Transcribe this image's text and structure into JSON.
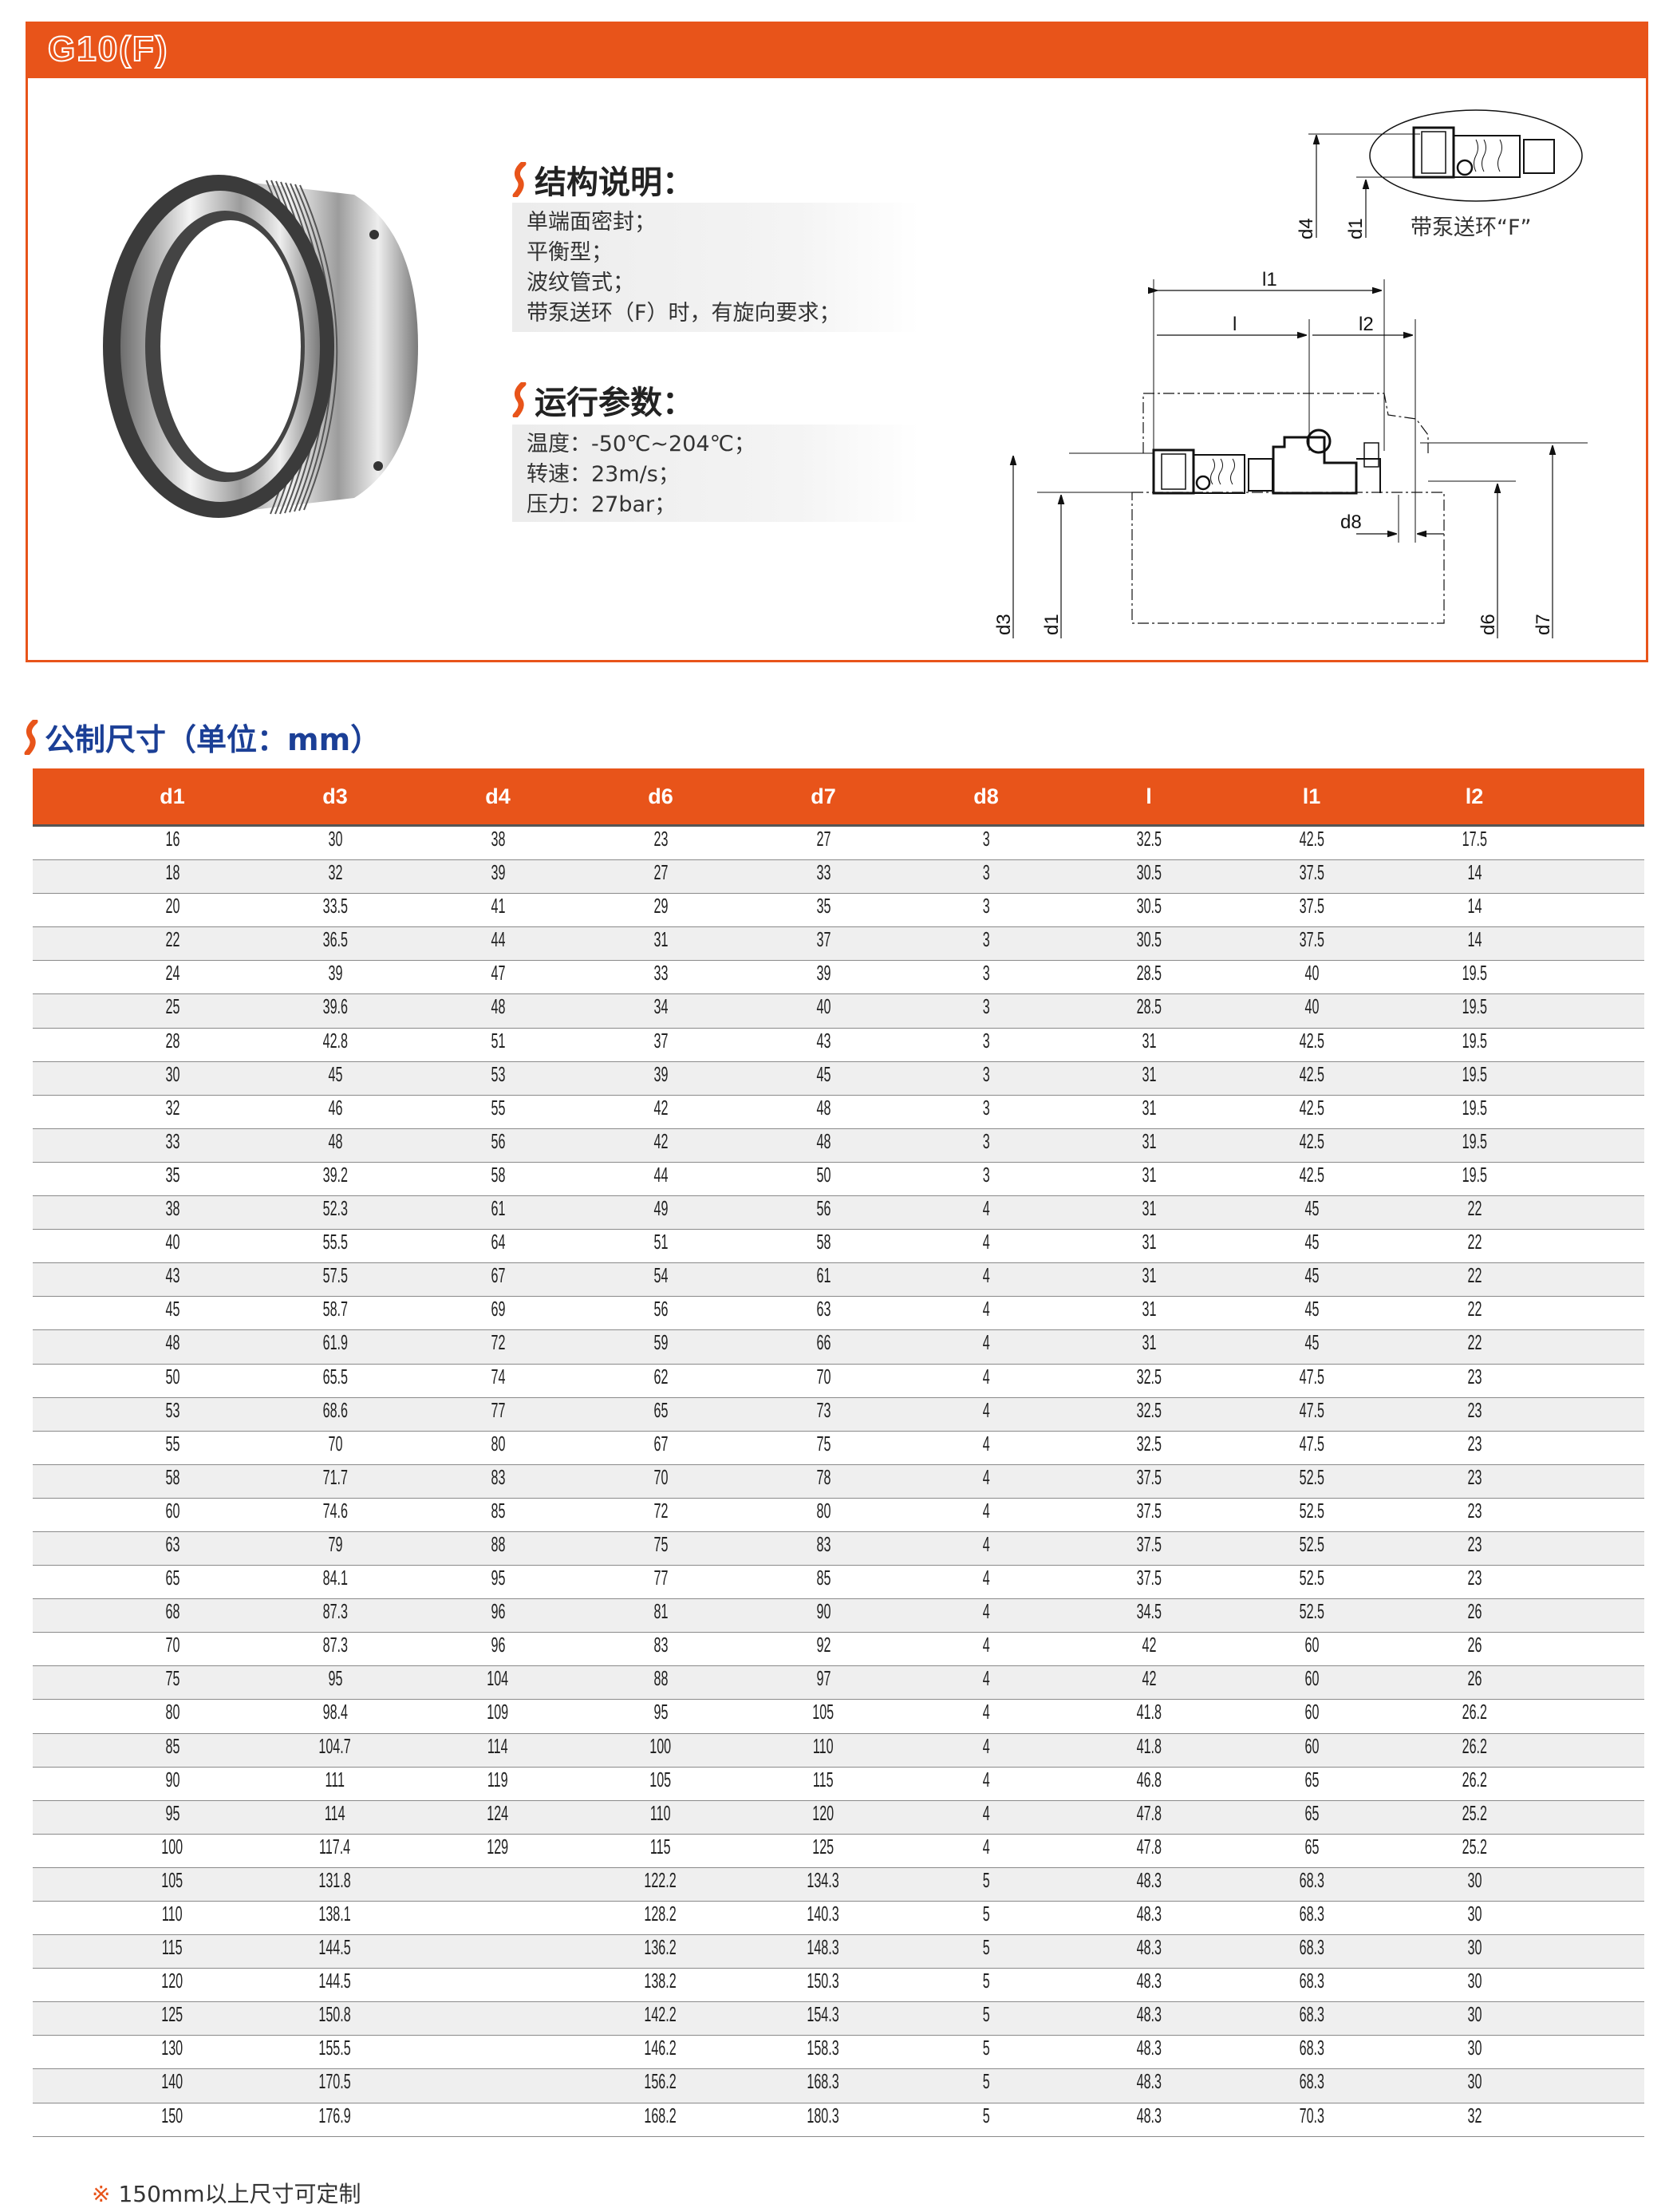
{
  "header": {
    "title": "G10(F)"
  },
  "colors": {
    "accent": "#e8541a",
    "heading_blue": "#1b3f96",
    "row_alt": "#efefef"
  },
  "structure": {
    "heading": "结构说明：",
    "lines": [
      "单端面密封；",
      "平衡型；",
      "波纹管式；",
      "带泵送环（F）时，有旋向要求；"
    ]
  },
  "operating": {
    "heading": "运行参数：",
    "lines": [
      "温度：-50℃~204℃；",
      "转速：23m/s；",
      "压力：27bar；"
    ]
  },
  "diagram": {
    "inset_caption": "带泵送环“F”",
    "labels": {
      "d4": "d4",
      "d1_inset": "d1",
      "l1": "l1",
      "l": "l",
      "l2": "l2",
      "d8": "d8",
      "d3": "d3",
      "d1": "d1",
      "d6": "d6",
      "d7": "d7"
    }
  },
  "metric": {
    "heading": "公制尺寸（单位：mm）",
    "columns": [
      "d1",
      "d3",
      "d4",
      "d6",
      "d7",
      "d8",
      "l",
      "l1",
      "l2"
    ],
    "rows": [
      [
        "16",
        "30",
        "38",
        "23",
        "27",
        "3",
        "32.5",
        "42.5",
        "17.5"
      ],
      [
        "18",
        "32",
        "39",
        "27",
        "33",
        "3",
        "30.5",
        "37.5",
        "14"
      ],
      [
        "20",
        "33.5",
        "41",
        "29",
        "35",
        "3",
        "30.5",
        "37.5",
        "14"
      ],
      [
        "22",
        "36.5",
        "44",
        "31",
        "37",
        "3",
        "30.5",
        "37.5",
        "14"
      ],
      [
        "24",
        "39",
        "47",
        "33",
        "39",
        "3",
        "28.5",
        "40",
        "19.5"
      ],
      [
        "25",
        "39.6",
        "48",
        "34",
        "40",
        "3",
        "28.5",
        "40",
        "19.5"
      ],
      [
        "28",
        "42.8",
        "51",
        "37",
        "43",
        "3",
        "31",
        "42.5",
        "19.5"
      ],
      [
        "30",
        "45",
        "53",
        "39",
        "45",
        "3",
        "31",
        "42.5",
        "19.5"
      ],
      [
        "32",
        "46",
        "55",
        "42",
        "48",
        "3",
        "31",
        "42.5",
        "19.5"
      ],
      [
        "33",
        "48",
        "56",
        "42",
        "48",
        "3",
        "31",
        "42.5",
        "19.5"
      ],
      [
        "35",
        "39.2",
        "58",
        "44",
        "50",
        "3",
        "31",
        "42.5",
        "19.5"
      ],
      [
        "38",
        "52.3",
        "61",
        "49",
        "56",
        "4",
        "31",
        "45",
        "22"
      ],
      [
        "40",
        "55.5",
        "64",
        "51",
        "58",
        "4",
        "31",
        "45",
        "22"
      ],
      [
        "43",
        "57.5",
        "67",
        "54",
        "61",
        "4",
        "31",
        "45",
        "22"
      ],
      [
        "45",
        "58.7",
        "69",
        "56",
        "63",
        "4",
        "31",
        "45",
        "22"
      ],
      [
        "48",
        "61.9",
        "72",
        "59",
        "66",
        "4",
        "31",
        "45",
        "22"
      ],
      [
        "50",
        "65.5",
        "74",
        "62",
        "70",
        "4",
        "32.5",
        "47.5",
        "23"
      ],
      [
        "53",
        "68.6",
        "77",
        "65",
        "73",
        "4",
        "32.5",
        "47.5",
        "23"
      ],
      [
        "55",
        "70",
        "80",
        "67",
        "75",
        "4",
        "32.5",
        "47.5",
        "23"
      ],
      [
        "58",
        "71.7",
        "83",
        "70",
        "78",
        "4",
        "37.5",
        "52.5",
        "23"
      ],
      [
        "60",
        "74.6",
        "85",
        "72",
        "80",
        "4",
        "37.5",
        "52.5",
        "23"
      ],
      [
        "63",
        "79",
        "88",
        "75",
        "83",
        "4",
        "37.5",
        "52.5",
        "23"
      ],
      [
        "65",
        "84.1",
        "95",
        "77",
        "85",
        "4",
        "37.5",
        "52.5",
        "23"
      ],
      [
        "68",
        "87.3",
        "96",
        "81",
        "90",
        "4",
        "34.5",
        "52.5",
        "26"
      ],
      [
        "70",
        "87.3",
        "96",
        "83",
        "92",
        "4",
        "42",
        "60",
        "26"
      ],
      [
        "75",
        "95",
        "104",
        "88",
        "97",
        "4",
        "42",
        "60",
        "26"
      ],
      [
        "80",
        "98.4",
        "109",
        "95",
        "105",
        "4",
        "41.8",
        "60",
        "26.2"
      ],
      [
        "85",
        "104.7",
        "114",
        "100",
        "110",
        "4",
        "41.8",
        "60",
        "26.2"
      ],
      [
        "90",
        "111",
        "119",
        "105",
        "115",
        "4",
        "46.8",
        "65",
        "26.2"
      ],
      [
        "95",
        "114",
        "124",
        "110",
        "120",
        "4",
        "47.8",
        "65",
        "25.2"
      ],
      [
        "100",
        "117.4",
        "129",
        "115",
        "125",
        "4",
        "47.8",
        "65",
        "25.2"
      ],
      [
        "105",
        "131.8",
        "",
        "122.2",
        "134.3",
        "5",
        "48.3",
        "68.3",
        "30"
      ],
      [
        "110",
        "138.1",
        "",
        "128.2",
        "140.3",
        "5",
        "48.3",
        "68.3",
        "30"
      ],
      [
        "115",
        "144.5",
        "",
        "136.2",
        "148.3",
        "5",
        "48.3",
        "68.3",
        "30"
      ],
      [
        "120",
        "144.5",
        "",
        "138.2",
        "150.3",
        "5",
        "48.3",
        "68.3",
        "30"
      ],
      [
        "125",
        "150.8",
        "",
        "142.2",
        "154.3",
        "5",
        "48.3",
        "68.3",
        "30"
      ],
      [
        "130",
        "155.5",
        "",
        "146.2",
        "158.3",
        "5",
        "48.3",
        "68.3",
        "30"
      ],
      [
        "140",
        "170.5",
        "",
        "156.2",
        "168.3",
        "5",
        "48.3",
        "68.3",
        "30"
      ],
      [
        "150",
        "176.9",
        "",
        "168.2",
        "180.3",
        "5",
        "48.3",
        "70.3",
        "32"
      ]
    ]
  },
  "footnote": {
    "mark": "※",
    "text": "150mm以上尺寸可定制"
  }
}
